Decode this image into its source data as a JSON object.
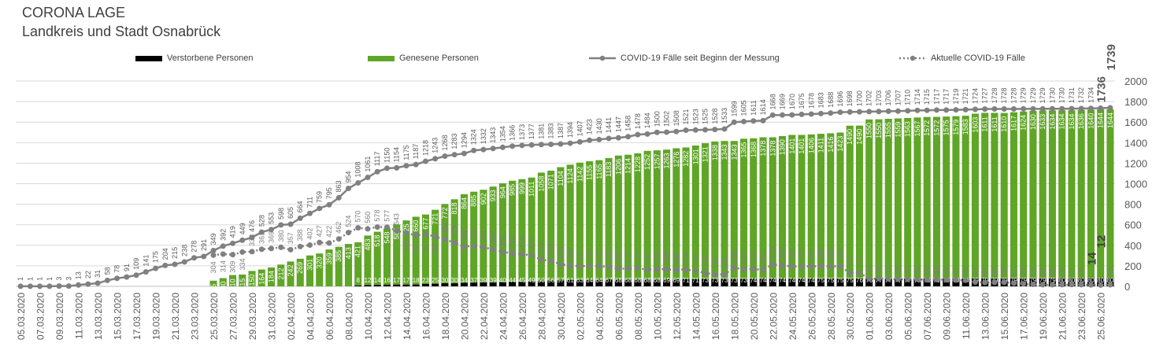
{
  "title": "CORONA LAGE",
  "subtitle": "Landkreis und Stadt Osnabrück",
  "chart_data": {
    "type": "bar+line",
    "ylim": [
      0,
      2000
    ],
    "yticks": [
      0,
      200,
      400,
      600,
      800,
      1000,
      1200,
      1400,
      1600,
      1800,
      2000
    ],
    "grid": true,
    "legend_position": "top",
    "colors": {
      "deaths": "#000000",
      "recovered": "#5fa526",
      "total": "#808080",
      "active": "#808080"
    },
    "start_date": "05.03.2020",
    "series": [
      {
        "name": "Verstorbene Personen",
        "type": "stacked-bar",
        "values": [
          0,
          0,
          0,
          0,
          0,
          0,
          0,
          0,
          0,
          0,
          0,
          0,
          0,
          0,
          0,
          0,
          0,
          0,
          0,
          0,
          0,
          0,
          0,
          0,
          0,
          0,
          0,
          0,
          0,
          0,
          0,
          0,
          0,
          0,
          0,
          8,
          12,
          14,
          16,
          17,
          17,
          18,
          23,
          25,
          30,
          30,
          34,
          37,
          39,
          39,
          40,
          44,
          45,
          49,
          50,
          56,
          57,
          61,
          63,
          64,
          64,
          67,
          68,
          68,
          68,
          68,
          68,
          69,
          69,
          71,
          71,
          73,
          73,
          73,
          73,
          73,
          74,
          74,
          74,
          74,
          74,
          74,
          74,
          75,
          75,
          75,
          75,
          76,
          76,
          77,
          77,
          77,
          77,
          78,
          78,
          79,
          79,
          79,
          79,
          79,
          79,
          79,
          79,
          79,
          79,
          79,
          79,
          79,
          80,
          80,
          80,
          80,
          80,
          80,
          80,
          80,
          80,
          80,
          80
        ]
      },
      {
        "name": "Genesene Personen",
        "type": "stacked-bar",
        "values": [
          null,
          null,
          null,
          null,
          null,
          null,
          null,
          null,
          null,
          null,
          null,
          null,
          null,
          null,
          null,
          null,
          null,
          null,
          null,
          null,
          55,
          80,
          110,
          115,
          150,
          164,
          184,
          212,
          242,
          269,
          301,
          320,
          359,
          385,
          413,
          421,
          483,
          518,
          548,
          586,
          625,
          660,
          677,
          721,
          772,
          818,
          864,
          885,
          902,
          933,
          964,
          985,
          999,
          1011,
          1058,
          1071,
          1104,
          1124,
          1142,
          1155,
          1165,
          1183,
          1206,
          1214,
          1228,
          1252,
          1257,
          1263,
          1276,
          1282,
          1301,
          1321,
          1338,
          1343,
          1343,
          1365,
          1368,
          1378,
          1378,
          1390,
          1401,
          1401,
          1406,
          1411,
          1416,
          1423,
          1490,
          1490,
          1550,
          1550,
          1555,
          1559,
          1563,
          1567,
          1572,
          1572,
          1575,
          1579,
          1583,
          1603,
          1611,
          1611,
          1610,
          1617,
          1624,
          1630,
          1633,
          1634,
          1634,
          1634,
          1636,
          1640,
          1644,
          1644
        ]
      },
      {
        "name": "COVID-19 Fälle seit Beginn der Messung",
        "type": "line",
        "values": [
          1,
          1,
          1,
          1,
          3,
          3,
          13,
          22,
          31,
          58,
          78,
          91,
          109,
          141,
          175,
          204,
          215,
          238,
          278,
          291,
          349,
          392,
          419,
          449,
          476,
          528,
          553,
          598,
          605,
          664,
          711,
          759,
          795,
          863,
          954,
          1008,
          1061,
          1117,
          1150,
          1154,
          1175,
          1187,
          1218,
          1243,
          1268,
          1283,
          1294,
          1324,
          1332,
          1343,
          1354,
          1366,
          1373,
          1377,
          1381,
          1383,
          1387,
          1394,
          1407,
          1423,
          1430,
          1441,
          1447,
          1458,
          1478,
          1484,
          1500,
          1502,
          1508,
          1521,
          1523,
          1525,
          1528,
          1533,
          1599,
          1605,
          1611,
          1614,
          1668,
          1669,
          1670,
          1675,
          1678,
          1683,
          1688,
          1696,
          1698,
          1700,
          1702,
          1703,
          1706,
          1707,
          1710,
          1714,
          1715,
          1717,
          1717,
          1719,
          1721,
          1724,
          1727,
          1728,
          1728,
          1728,
          1729,
          1729,
          1729,
          1730,
          1730,
          1731,
          1732,
          1734,
          1736,
          1739
        ]
      },
      {
        "name": "Aktuelle COVID-19 Fälle",
        "type": "dotted-line",
        "values": [
          null,
          null,
          null,
          null,
          null,
          null,
          null,
          null,
          null,
          null,
          null,
          null,
          null,
          null,
          null,
          null,
          null,
          null,
          null,
          null,
          304,
          314,
          309,
          334,
          338,
          361,
          369,
          380,
          357,
          388,
          402,
          427,
          422,
          462,
          524,
          570,
          560,
          578,
          577,
          543,
          520,
          497,
          507,
          485,
          457,
          425,
          386,
          394,
          381,
          360,
          334,
          324,
          313,
          303,
          259,
          248,
          216,
          202,
          197,
          200,
          197,
          190,
          172,
          175,
          179,
          161,
          170,
          166,
          160,
          166,
          149,
          130,
          116,
          116,
          182,
          166,
          169,
          161,
          215,
          204,
          194,
          193,
          195,
          195,
          195,
          196,
          131,
          133,
          74,
          75,
          72,
          69,
          68,
          68,
          64,
          66,
          63,
          61,
          59,
          42,
          37,
          38,
          39,
          31,
          25,
          19,
          16,
          16,
          16,
          17,
          16,
          14,
          12,
          15
        ]
      }
    ]
  }
}
